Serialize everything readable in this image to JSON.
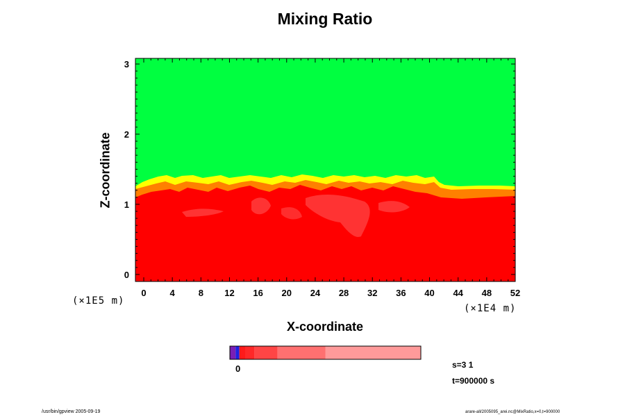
{
  "chart_data": {
    "type": "heatmap",
    "title": "Mixing Ratio",
    "xlabel": "X-coordinate",
    "ylabel": "Z-coordinate",
    "x_ticks": [
      "0",
      "4",
      "8",
      "12",
      "16",
      "20",
      "24",
      "28",
      "32",
      "36",
      "40",
      "44",
      "48",
      "52"
    ],
    "x_range": [
      0,
      52
    ],
    "x_scale_label": "(×1E4 m)",
    "y_ticks": [
      "0",
      "1",
      "2",
      "3"
    ],
    "y_range": [
      -0.1,
      3.08
    ],
    "y_scale_label": "(×1E5 m)",
    "field": {
      "lower_region": "red",
      "upper_region": "green",
      "interface_height_range": [
        1.1,
        1.4
      ],
      "transition_colors": [
        "yellow",
        "orange"
      ]
    },
    "colorbar": {
      "colors": [
        "#7a1fb5",
        "#2020e0",
        "#ff1a1a",
        "#ff2828",
        "#ff4545",
        "#ff7070",
        "#ff9a9a"
      ],
      "label": "0"
    },
    "grid": false
  },
  "info": {
    "s_label": "s=3 1",
    "t_label": "t=900000 s"
  },
  "footer": {
    "left": "/usr/bin/gpview 2005-09-19",
    "right": "arare-all/2005095_arei.nc@MixRatio,x=0,t=900000"
  },
  "colors": {
    "red": "#ff0000",
    "green": "#00ff40",
    "yellow": "#ffff00",
    "orange": "#ff8000",
    "light_red": "#ff4040"
  }
}
